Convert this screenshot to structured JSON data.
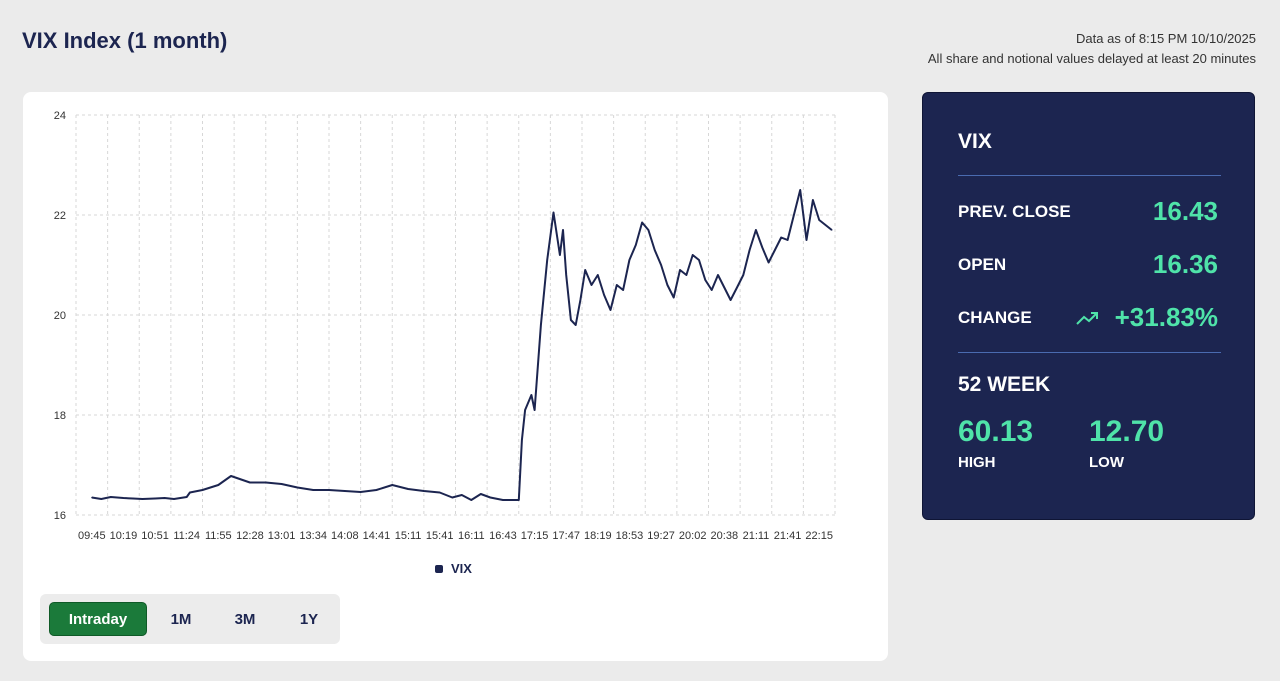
{
  "header": {
    "title": "VIX Index (1 month)",
    "data_as_of": "Data as of 8:15 PM 10/10/2025",
    "delay_note": "All share and notional values delayed at least 20 minutes"
  },
  "colors": {
    "line": "#1c2550",
    "accent_green": "#4fe3a9",
    "card_bg": "#1c2550",
    "active_button": "#1b7a3a"
  },
  "chart_data": {
    "type": "line",
    "title": "",
    "xlabel": "",
    "ylabel": "",
    "ylim": [
      16,
      24
    ],
    "yticks": [
      16,
      18,
      20,
      22,
      24
    ],
    "grid": true,
    "legend_placement": "bottom-center",
    "x_ticks": [
      "09:45",
      "10:19",
      "10:51",
      "11:24",
      "11:55",
      "12:28",
      "13:01",
      "13:34",
      "14:08",
      "14:41",
      "15:11",
      "15:41",
      "16:11",
      "16:43",
      "17:15",
      "17:47",
      "18:19",
      "18:53",
      "19:27",
      "20:02",
      "20:38",
      "21:11",
      "21:41",
      "22:15"
    ],
    "series": [
      {
        "name": "VIX",
        "x": [
          0,
          0.3,
          0.6,
          1,
          1.3,
          1.6,
          2,
          2.3,
          2.6,
          3,
          3.1,
          3.5,
          4,
          4.4,
          5,
          5.5,
          6,
          6.5,
          7,
          7.5,
          8,
          8.5,
          9,
          9.5,
          10,
          10.5,
          11,
          11.4,
          11.7,
          12,
          12.3,
          12.6,
          13,
          13.3,
          13.5,
          13.6,
          13.7,
          13.9,
          14,
          14.2,
          14.4,
          14.6,
          14.8,
          14.9,
          15,
          15.15,
          15.3,
          15.45,
          15.6,
          15.8,
          16,
          16.2,
          16.4,
          16.6,
          16.8,
          17,
          17.2,
          17.4,
          17.6,
          17.8,
          18,
          18.2,
          18.4,
          18.6,
          18.8,
          19,
          19.2,
          19.4,
          19.6,
          19.8,
          20,
          20.2,
          20.4,
          20.6,
          20.8,
          21,
          21.2,
          21.4,
          21.6,
          21.8,
          22,
          22.2,
          22.4,
          22.6,
          22.8,
          23,
          23.2,
          23.4
        ],
        "y": [
          16.35,
          16.32,
          16.36,
          16.34,
          16.33,
          16.32,
          16.33,
          16.34,
          16.32,
          16.36,
          16.45,
          16.5,
          16.6,
          16.78,
          16.65,
          16.65,
          16.62,
          16.55,
          16.5,
          16.5,
          16.48,
          16.46,
          16.5,
          16.6,
          16.52,
          16.48,
          16.45,
          16.35,
          16.4,
          16.3,
          16.42,
          16.35,
          16.3,
          16.3,
          16.3,
          17.5,
          18.1,
          18.4,
          18.1,
          19.8,
          21.1,
          22.05,
          21.2,
          21.7,
          20.8,
          19.9,
          19.8,
          20.3,
          20.9,
          20.6,
          20.8,
          20.4,
          20.1,
          20.6,
          20.5,
          21.1,
          21.4,
          21.85,
          21.7,
          21.3,
          21.0,
          20.6,
          20.35,
          20.9,
          20.8,
          21.2,
          21.1,
          20.7,
          20.5,
          20.8,
          20.55,
          20.3,
          20.55,
          20.8,
          21.3,
          21.7,
          21.35,
          21.05,
          21.3,
          21.55,
          21.5,
          22.0,
          22.5,
          21.5,
          22.3,
          21.9,
          21.8,
          21.7
        ]
      }
    ]
  },
  "legend": {
    "label": "VIX"
  },
  "range_buttons": [
    "Intraday",
    "1M",
    "3M",
    "1Y"
  ],
  "stats": {
    "symbol": "VIX",
    "prev_close_label": "PREV. CLOSE",
    "prev_close_value": "16.43",
    "open_label": "OPEN",
    "open_value": "16.36",
    "change_label": "CHANGE",
    "change_value": "+31.83%",
    "trend_icon": "trending-up-icon",
    "week_label": "52 WEEK",
    "high_value": "60.13",
    "high_label": "HIGH",
    "low_value": "12.70",
    "low_label": "LOW"
  }
}
